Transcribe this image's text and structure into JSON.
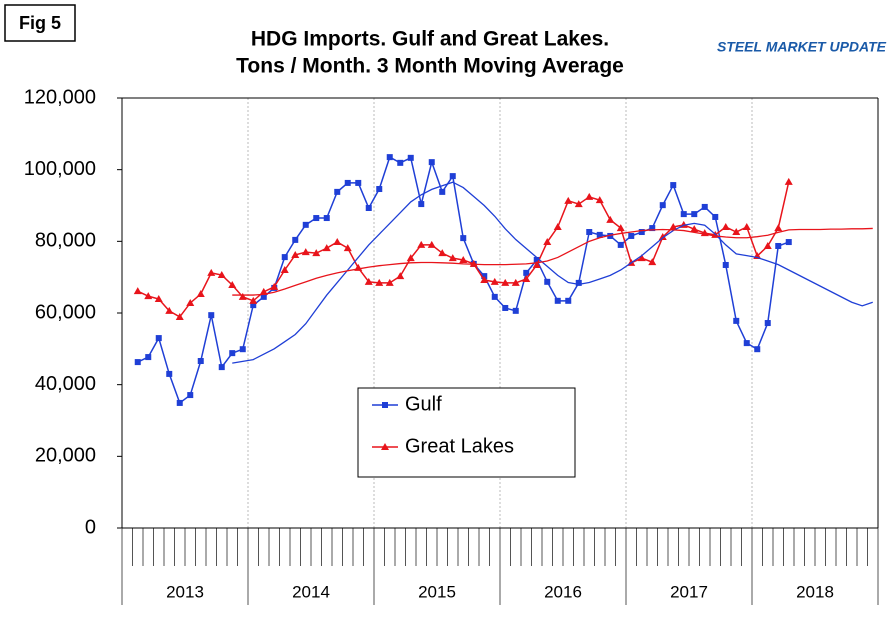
{
  "chart_data": {
    "type": "line",
    "figure_label": "Fig 5",
    "title": [
      "HDG Imports. Gulf and Great Lakes.",
      "Tons / Month. 3 Month Moving Average"
    ],
    "logo": "STEEL MARKET UPDATE",
    "years": [
      "2013",
      "2014",
      "2015",
      "2016",
      "2017",
      "2018"
    ],
    "months_per_year": 12,
    "categories": [
      null,
      null,
      null,
      null,
      null,
      null,
      null,
      null,
      null,
      null,
      null,
      null,
      null,
      null,
      null,
      null,
      null,
      null,
      null,
      null,
      null,
      null,
      null,
      null,
      null,
      null,
      null,
      null,
      null,
      null,
      null,
      null,
      null,
      null,
      null,
      null,
      null,
      null,
      null,
      null,
      null,
      null,
      null,
      null,
      null,
      null,
      null,
      null,
      null,
      null,
      null,
      null,
      null,
      null,
      null,
      null,
      null,
      null,
      null,
      null,
      null,
      null,
      null,
      null,
      null,
      null,
      null,
      null,
      null,
      null,
      null,
      null
    ],
    "ylim": [
      0,
      120000
    ],
    "yticks": [
      0,
      {
        "value": 20000,
        "label": "20,000"
      },
      {
        "value": 40000,
        "label": "40,000"
      },
      {
        "value": 60000,
        "label": "60,000"
      },
      {
        "value": 80000,
        "label": "80,000"
      },
      {
        "value": 100000,
        "label": "100,000"
      },
      {
        "value": 120000,
        "label": "120,000"
      }
    ],
    "grid": "x-year",
    "series": [
      {
        "name": "Gulf",
        "color": "#1f3fd6",
        "marker": "square",
        "values": [
          null,
          46300,
          47700,
          53000,
          43000,
          34900,
          37100,
          46600,
          59400,
          44900,
          48800,
          49900,
          62200,
          64500,
          67000,
          75600,
          80400,
          84600,
          86500,
          86500,
          93800,
          96300,
          96300,
          89300,
          94600,
          103500,
          101900,
          103300,
          90400,
          102100,
          93800,
          98200,
          80900,
          73700,
          70300,
          64500,
          61400,
          60600,
          71200,
          74800,
          68700,
          63400,
          63400,
          68400,
          82600,
          81800,
          81500,
          79000,
          81500,
          82600,
          83700,
          90100,
          95700,
          87600,
          87600,
          89600,
          86800,
          73400,
          57800,
          51600,
          49900,
          57200,
          78700,
          79800,
          null,
          null,
          null,
          null,
          null,
          null,
          null,
          null
        ]
      },
      {
        "name": "Great Lakes",
        "color": "#e8141b",
        "marker": "triangle",
        "values": [
          null,
          66100,
          64700,
          63900,
          60600,
          58900,
          62800,
          65300,
          71200,
          70600,
          67800,
          64500,
          63400,
          65900,
          67300,
          72000,
          76200,
          77000,
          76700,
          78100,
          79800,
          78100,
          72600,
          68700,
          68400,
          68400,
          70300,
          75300,
          79000,
          79000,
          76700,
          75300,
          74800,
          73700,
          69200,
          68700,
          68400,
          68400,
          69500,
          73400,
          79800,
          84000,
          91300,
          90400,
          92400,
          91500,
          86000,
          83700,
          74000,
          75300,
          74200,
          81200,
          84000,
          84600,
          83400,
          82300,
          81800,
          84000,
          82600,
          84000,
          75900,
          78700,
          83700,
          96600,
          null,
          null,
          null,
          null,
          null,
          null,
          null,
          null
        ]
      },
      {
        "color": "#1f3fd6",
        "values": [
          null,
          null,
          null,
          null,
          null,
          null,
          null,
          null,
          null,
          null,
          46000,
          46500,
          47000,
          48500,
          50000,
          52000,
          54000,
          57000,
          61000,
          65000,
          68500,
          72000,
          75500,
          79000,
          82000,
          85000,
          88000,
          91000,
          93000,
          94500,
          95500,
          96500,
          95000,
          92500,
          90000,
          87000,
          83500,
          80500,
          78000,
          75500,
          73000,
          70500,
          68500,
          68000,
          68500,
          69500,
          70500,
          72000,
          74000,
          76000,
          78500,
          81000,
          83000,
          84500,
          85000,
          84500,
          82000,
          79000,
          76500,
          76000,
          75500,
          74500,
          73500,
          72000,
          70500,
          69000,
          67500,
          66000,
          64500,
          63000,
          62000,
          63000
        ]
      },
      {
        "color": "#e8141b",
        "values": [
          null,
          null,
          null,
          null,
          null,
          null,
          null,
          null,
          null,
          null,
          65000,
          65000,
          65000,
          65200,
          65800,
          66700,
          67700,
          68700,
          69700,
          70500,
          71200,
          71800,
          72300,
          72800,
          73200,
          73500,
          73800,
          74000,
          74100,
          74100,
          74000,
          73900,
          73700,
          73600,
          73500,
          73500,
          73500,
          73600,
          73700,
          74000,
          74500,
          75500,
          77000,
          78500,
          80000,
          81000,
          81700,
          82200,
          82600,
          83000,
          83200,
          83300,
          83200,
          83000,
          82500,
          82000,
          81500,
          81200,
          81000,
          81000,
          81300,
          81700,
          82500,
          83200,
          83300,
          83300,
          83300,
          83400,
          83400,
          83500,
          83500,
          83600
        ]
      }
    ]
  }
}
